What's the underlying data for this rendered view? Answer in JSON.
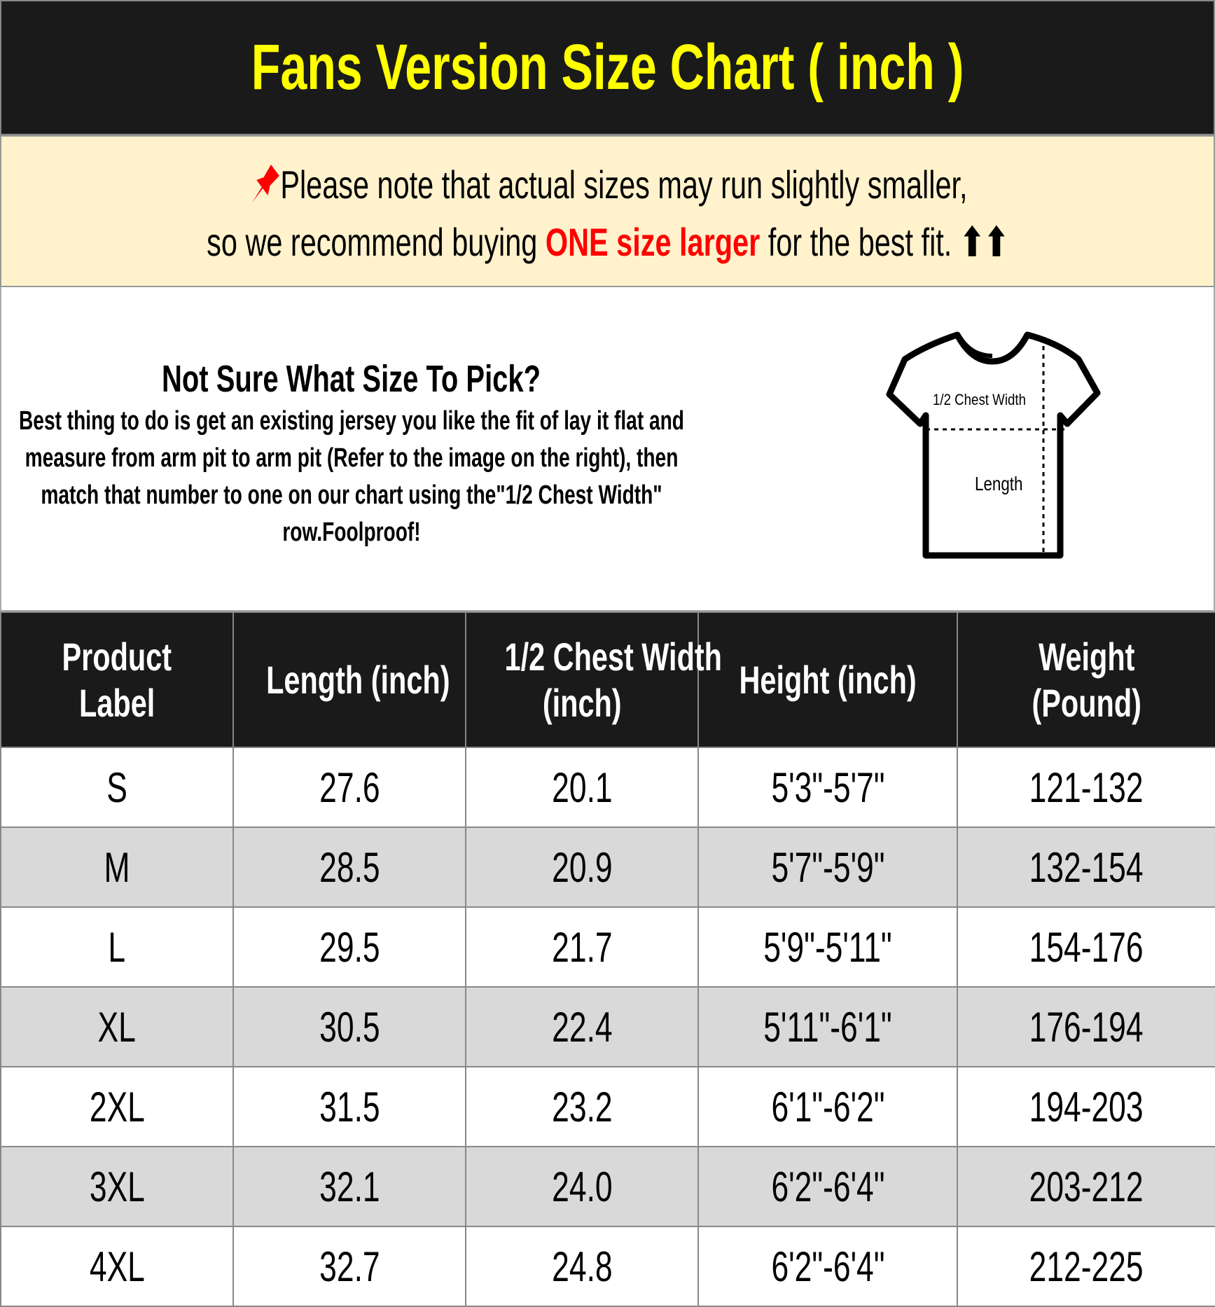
{
  "title": "Fans Version Size Chart ( inch )",
  "note": {
    "icon": "pushpin-icon",
    "line1": "Please note that actual sizes may run slightly smaller,",
    "line2_before": "so we recommend buying ",
    "line2_highlight": "ONE size larger",
    "line2_after": " for the best fit. ",
    "arrows": "⬆⬆",
    "highlight_color": "#ff0000"
  },
  "info": {
    "heading": "Not Sure What Size To Pick?",
    "body": "Best thing to do is get an existing jersey you like the fit of lay it flat and measure from arm pit to arm pit (Refer to the image on the right), then match that number to one on our chart using the\"1/2 Chest Width\" row.Foolproof!",
    "diagram": {
      "chest_label": "1/2 Chest Width",
      "length_label": "Length"
    }
  },
  "table": {
    "headers": [
      [
        "Product",
        "Label"
      ],
      [
        "Length (inch)"
      ],
      [
        "1/2 Chest Width",
        "(inch)"
      ],
      [
        "Height (inch)"
      ],
      [
        "Weight",
        "(Pound)"
      ]
    ],
    "rows": [
      [
        "S",
        "27.6",
        "20.1",
        "5'3\"-5'7\"",
        "121-132"
      ],
      [
        "M",
        "28.5",
        "20.9",
        "5'7\"-5'9\"",
        "132-154"
      ],
      [
        "L",
        "29.5",
        "21.7",
        "5'9\"-5'11\"",
        "154-176"
      ],
      [
        "XL",
        "30.5",
        "22.4",
        "5'11\"-6'1\"",
        "176-194"
      ],
      [
        "2XL",
        "31.5",
        "23.2",
        "6'1\"-6'2\"",
        "194-203"
      ],
      [
        "3XL",
        "32.1",
        "24.0",
        "6'2\"-6'4\"",
        "203-212"
      ],
      [
        "4XL",
        "32.7",
        "24.8",
        "6'2\"-6'4\"",
        "212-225"
      ]
    ]
  },
  "colors": {
    "title_bg": "#1a1a1a",
    "title_text": "#ffff00",
    "note_bg": "#fff2cc",
    "alt_row": "#d9d9d9"
  }
}
